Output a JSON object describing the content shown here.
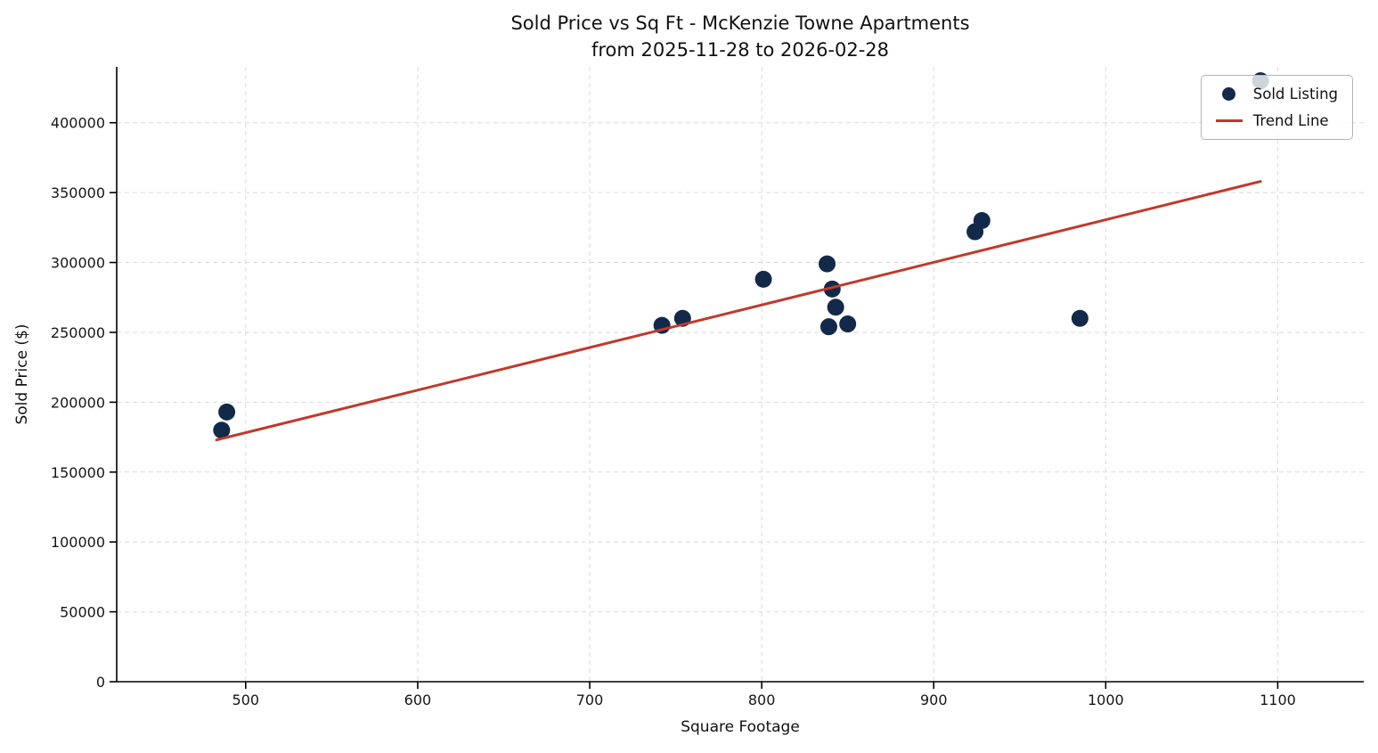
{
  "chart_data": {
    "type": "scatter",
    "title_line1": "Sold Price vs Sq Ft - McKenzie Towne Apartments",
    "title_line2": "from 2025-11-28 to 2026-02-28",
    "xlabel": "Square Footage",
    "ylabel": "Sold Price ($)",
    "xlim": [
      425,
      1150
    ],
    "ylim": [
      0,
      440000
    ],
    "xticks": [
      500,
      600,
      700,
      800,
      900,
      1000,
      1100
    ],
    "yticks": [
      0,
      50000,
      100000,
      150000,
      200000,
      250000,
      300000,
      350000,
      400000
    ],
    "grid": true,
    "legend": {
      "position": "upper right",
      "entries": [
        {
          "label": "Sold Listing",
          "type": "marker"
        },
        {
          "label": "Trend Line",
          "type": "line"
        }
      ]
    },
    "series": [
      {
        "name": "Sold Listing",
        "type": "scatter",
        "color": "#13294a",
        "points": [
          {
            "x": 486,
            "y": 180000
          },
          {
            "x": 489,
            "y": 193000
          },
          {
            "x": 742,
            "y": 255000
          },
          {
            "x": 754,
            "y": 260000
          },
          {
            "x": 801,
            "y": 288000
          },
          {
            "x": 838,
            "y": 299000
          },
          {
            "x": 841,
            "y": 281000
          },
          {
            "x": 843,
            "y": 268000
          },
          {
            "x": 839,
            "y": 254000
          },
          {
            "x": 850,
            "y": 256000
          },
          {
            "x": 924,
            "y": 322000
          },
          {
            "x": 928,
            "y": 330000
          },
          {
            "x": 985,
            "y": 260000
          },
          {
            "x": 1090,
            "y": 430000
          }
        ]
      },
      {
        "name": "Trend Line",
        "type": "line",
        "color": "#c0392b",
        "points": [
          {
            "x": 483,
            "y": 173000
          },
          {
            "x": 1090,
            "y": 358000
          }
        ]
      }
    ]
  }
}
